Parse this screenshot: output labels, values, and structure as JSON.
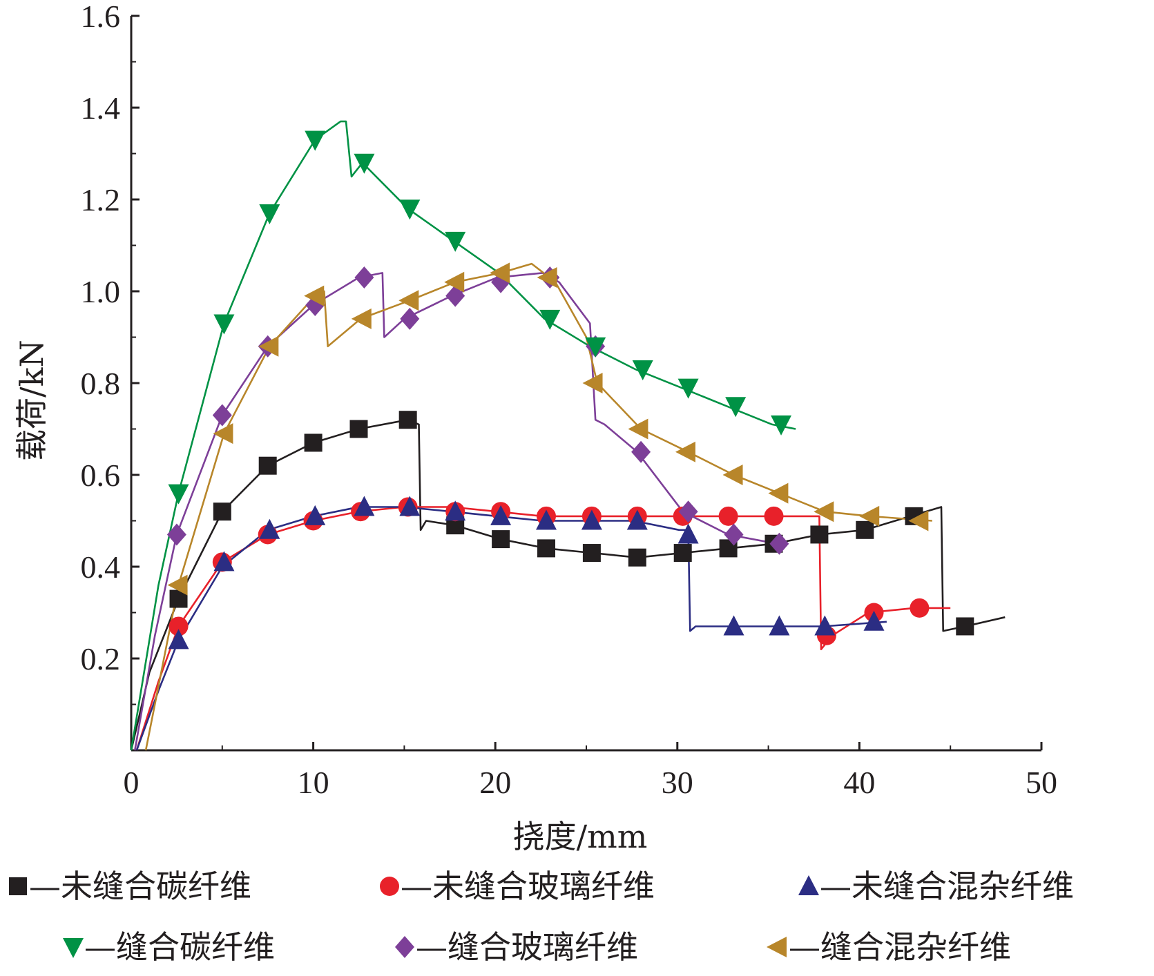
{
  "chart_data": {
    "type": "line",
    "xlabel": "挠度/mm",
    "ylabel": "载荷/kN",
    "xlim": [
      0,
      50
    ],
    "ylim": [
      0,
      1.6
    ],
    "x_ticks": [
      "0",
      "10",
      "20",
      "30",
      "40",
      "50"
    ],
    "x_tick_values": [
      0,
      10,
      20,
      30,
      40,
      50
    ],
    "y_ticks": [
      "0.2",
      "0.4",
      "0.6",
      "0.8",
      "1.0",
      "1.2",
      "1.4",
      "1.6"
    ],
    "y_tick_values": [
      0.2,
      0.4,
      0.6,
      0.8,
      1.0,
      1.2,
      1.4,
      1.6
    ],
    "grid": false,
    "legend_position": "bottom",
    "series": [
      {
        "name": "—未缝合碳纤维",
        "color": "#231f20",
        "marker": "square",
        "x": [
          0,
          1,
          2.6,
          5,
          7.5,
          10,
          12.5,
          15.2,
          15.8,
          15.9,
          16.2,
          17.8,
          20.3,
          22.8,
          25.3,
          27.8,
          30.3,
          32.8,
          35.3,
          37.8,
          40.3,
          42.8,
          44.5,
          44.6,
          45.8,
          48
        ],
        "values": [
          0,
          0.17,
          0.33,
          0.52,
          0.62,
          0.67,
          0.7,
          0.72,
          0.71,
          0.48,
          0.5,
          0.49,
          0.46,
          0.44,
          0.43,
          0.42,
          0.43,
          0.44,
          0.45,
          0.47,
          0.48,
          0.51,
          0.53,
          0.26,
          0.27,
          0.29
        ],
        "marker_x": [
          2.6,
          5,
          7.5,
          10,
          12.5,
          15.2,
          17.8,
          20.3,
          22.8,
          25.3,
          27.8,
          30.3,
          32.8,
          35.3,
          37.8,
          40.3,
          43,
          45.8
        ],
        "marker_y": [
          0.33,
          0.52,
          0.62,
          0.67,
          0.7,
          0.72,
          0.49,
          0.46,
          0.44,
          0.43,
          0.42,
          0.43,
          0.44,
          0.45,
          0.47,
          0.48,
          0.51,
          0.27
        ]
      },
      {
        "name": "—未缝合玻璃纤维",
        "color": "#e8212a",
        "marker": "circle",
        "x": [
          0.3,
          1.5,
          2.6,
          5,
          7.5,
          10,
          12.5,
          15,
          17.6,
          20.1,
          22.6,
          25.1,
          27.6,
          30.1,
          32.6,
          35.1,
          37.8,
          37.9,
          38.5,
          40.5,
          43,
          45
        ],
        "values": [
          0,
          0.15,
          0.27,
          0.41,
          0.47,
          0.5,
          0.52,
          0.53,
          0.53,
          0.52,
          0.51,
          0.51,
          0.51,
          0.51,
          0.51,
          0.51,
          0.51,
          0.22,
          0.25,
          0.3,
          0.31,
          0.31
        ],
        "marker_x": [
          2.6,
          5,
          7.5,
          10,
          12.6,
          15.2,
          17.8,
          20.3,
          22.8,
          25.3,
          27.8,
          30.3,
          32.8,
          35.3,
          38.2,
          40.8,
          43.3
        ],
        "marker_y": [
          0.27,
          0.41,
          0.47,
          0.5,
          0.52,
          0.53,
          0.52,
          0.52,
          0.51,
          0.51,
          0.51,
          0.51,
          0.51,
          0.51,
          0.25,
          0.3,
          0.31
        ]
      },
      {
        "name": "—未缝合混杂纤维",
        "color": "#2b2d83",
        "marker": "triangle-up",
        "x": [
          0.3,
          1.5,
          2.6,
          5,
          7.5,
          10,
          12.5,
          15,
          17.6,
          20.1,
          22.6,
          25.1,
          27.6,
          30.1,
          30.6,
          30.7,
          31,
          33,
          35.5,
          38,
          41.5
        ],
        "values": [
          0,
          0.13,
          0.24,
          0.4,
          0.48,
          0.51,
          0.53,
          0.53,
          0.52,
          0.51,
          0.5,
          0.5,
          0.5,
          0.48,
          0.48,
          0.26,
          0.27,
          0.27,
          0.27,
          0.27,
          0.28
        ],
        "marker_x": [
          2.6,
          5.1,
          7.6,
          10.1,
          12.8,
          15.3,
          17.8,
          20.3,
          22.8,
          25.3,
          27.8,
          30.6,
          33.1,
          35.6,
          38.1,
          40.8
        ],
        "marker_y": [
          0.24,
          0.41,
          0.48,
          0.51,
          0.53,
          0.53,
          0.52,
          0.51,
          0.5,
          0.5,
          0.5,
          0.47,
          0.27,
          0.27,
          0.27,
          0.28
        ]
      },
      {
        "name": "—缝合碳纤维",
        "color": "#009245",
        "marker": "triangle-down",
        "x": [
          0,
          1.5,
          2.6,
          5.1,
          7.6,
          10.1,
          11.5,
          11.8,
          12.1,
          12.7,
          15.2,
          17.7,
          20.2,
          22.7,
          25.2,
          27.7,
          30.2,
          32.7,
          35.2,
          36.5
        ],
        "values": [
          0,
          0.36,
          0.56,
          0.93,
          1.17,
          1.33,
          1.37,
          1.37,
          1.25,
          1.28,
          1.18,
          1.11,
          1.04,
          0.94,
          0.88,
          0.83,
          0.79,
          0.75,
          0.71,
          0.7
        ],
        "marker_x": [
          2.6,
          5.1,
          7.6,
          10.1,
          12.8,
          15.3,
          17.8,
          23,
          25.5,
          28.1,
          30.6,
          33.2,
          35.7
        ],
        "marker_y": [
          0.56,
          0.93,
          1.17,
          1.33,
          1.28,
          1.18,
          1.11,
          0.94,
          0.88,
          0.83,
          0.79,
          0.75,
          0.71
        ]
      },
      {
        "name": "—缝合玻璃纤维",
        "color": "#7d3f98",
        "marker": "diamond",
        "x": [
          0.2,
          1.3,
          2.5,
          5,
          7.5,
          10,
          12.5,
          13.8,
          13.9,
          15,
          17.6,
          20.1,
          22.6,
          23.5,
          25.2,
          25.5,
          26,
          27.8,
          30.3,
          32.8,
          35.5
        ],
        "values": [
          0,
          0.25,
          0.47,
          0.73,
          0.88,
          0.97,
          1.03,
          1.04,
          0.9,
          0.94,
          0.99,
          1.03,
          1.04,
          1.02,
          0.93,
          0.72,
          0.71,
          0.65,
          0.52,
          0.47,
          0.45
        ],
        "marker_x": [
          2.5,
          5,
          7.5,
          10.1,
          12.8,
          15.3,
          17.8,
          20.3,
          23,
          25.5,
          28,
          30.6,
          33.1,
          35.6
        ],
        "marker_y": [
          0.47,
          0.73,
          0.88,
          0.97,
          1.03,
          0.94,
          0.99,
          1.02,
          1.03,
          0.88,
          0.65,
          0.52,
          0.47,
          0.45
        ]
      },
      {
        "name": "—缝合混杂纤维",
        "color": "#b8862a",
        "marker": "triangle-left",
        "x": [
          0.8,
          1.8,
          2.6,
          5.1,
          7.6,
          10.1,
          10.6,
          10.8,
          12.6,
          15.3,
          17.8,
          20.3,
          22,
          23.3,
          25,
          25.6,
          28,
          30.6,
          33.1,
          35.6,
          38.1,
          40.6,
          44
        ],
        "values": [
          0,
          0.2,
          0.36,
          0.69,
          0.88,
          0.99,
          1.0,
          0.88,
          0.94,
          0.98,
          1.02,
          1.04,
          1.06,
          1.02,
          0.9,
          0.8,
          0.7,
          0.65,
          0.6,
          0.56,
          0.52,
          0.51,
          0.5
        ],
        "marker_x": [
          2.6,
          5.1,
          7.6,
          10.1,
          12.7,
          15.3,
          17.8,
          20.3,
          22.9,
          25.4,
          27.9,
          30.5,
          33.1,
          35.6,
          38.1,
          40.6,
          43.3
        ],
        "marker_y": [
          0.36,
          0.69,
          0.88,
          0.99,
          0.94,
          0.98,
          1.02,
          1.04,
          1.03,
          0.8,
          0.7,
          0.65,
          0.6,
          0.56,
          0.52,
          0.51,
          0.5
        ]
      }
    ]
  }
}
